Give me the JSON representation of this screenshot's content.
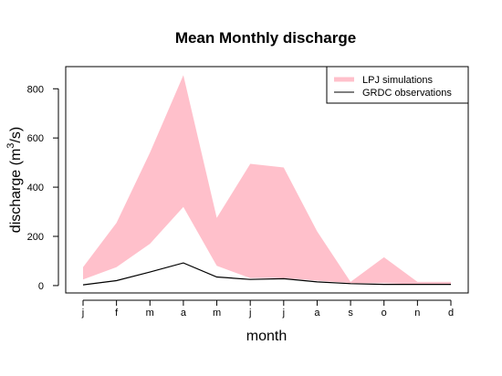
{
  "chart_data": {
    "type": "area",
    "title": "Mean Monthly discharge",
    "xlabel": "month",
    "ylabel_main": "discharge (m",
    "ylabel_sup": "3",
    "ylabel_end": "/s)",
    "categories": [
      "j",
      "f",
      "m",
      "a",
      "m",
      "j",
      "j",
      "a",
      "s",
      "o",
      "n",
      "d"
    ],
    "yticks": [
      0,
      200,
      400,
      600,
      800
    ],
    "ytick_labels": [
      "0",
      "200",
      "400",
      "600",
      "800"
    ],
    "ylim": [
      -30,
      890
    ],
    "legend_position": "top-right",
    "series": [
      {
        "name": "LPJ simulations",
        "kind": "band",
        "color": "#FFC0CB",
        "lower": [
          25,
          75,
          170,
          320,
          80,
          30,
          30,
          20,
          10,
          10,
          5,
          5
        ],
        "upper": [
          75,
          255,
          540,
          855,
          275,
          495,
          480,
          220,
          15,
          115,
          15,
          15
        ]
      },
      {
        "name": "GRDC observations",
        "kind": "line",
        "color": "#000000",
        "values": [
          3,
          20,
          55,
          92,
          35,
          25,
          28,
          15,
          8,
          5,
          5,
          5
        ]
      }
    ],
    "grid": false
  }
}
